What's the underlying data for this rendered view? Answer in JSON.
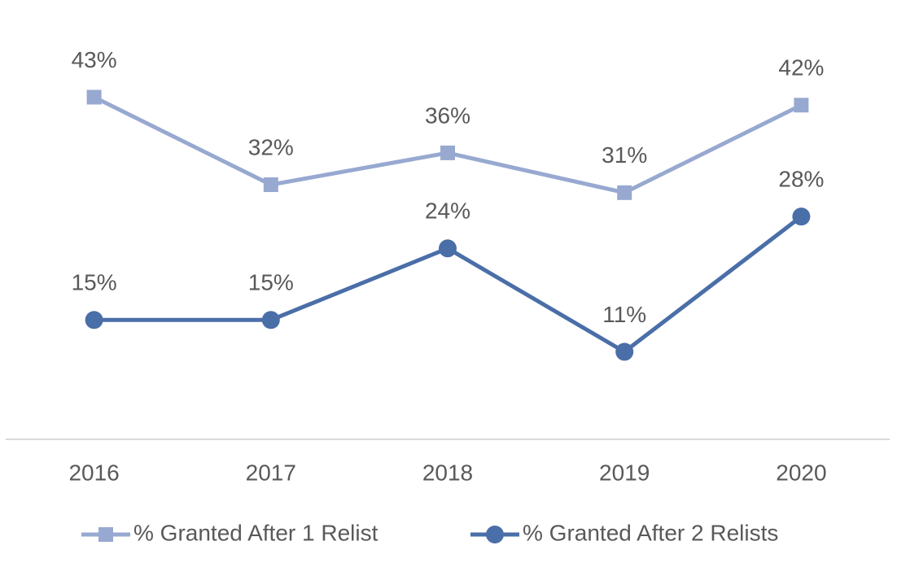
{
  "chart_data": {
    "type": "line",
    "categories": [
      "2016",
      "2017",
      "2018",
      "2019",
      "2020"
    ],
    "series": [
      {
        "name": "% Granted After 1 Relist",
        "color": "#97a9d0",
        "marker": "square",
        "values": [
          43,
          32,
          36,
          31,
          42
        ],
        "value_labels": [
          "43%",
          "32%",
          "36%",
          "31%",
          "42%"
        ]
      },
      {
        "name": "% Granted After 2 Relists",
        "color": "#4a6ea8",
        "marker": "circle",
        "values": [
          15,
          15,
          24,
          11,
          28
        ],
        "value_labels": [
          "15%",
          "15%",
          "24%",
          "11%",
          "28%"
        ]
      }
    ],
    "ylim": [
      0,
      50
    ],
    "grid": false,
    "legend": "bottom"
  }
}
